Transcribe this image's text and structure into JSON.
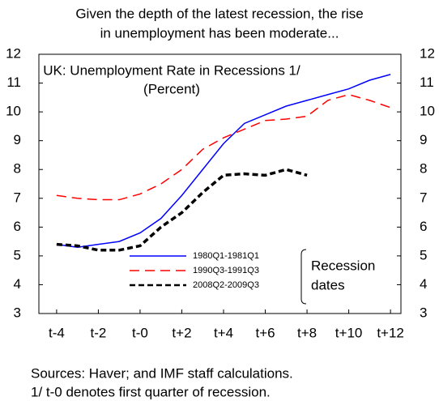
{
  "chart_data": {
    "type": "line",
    "title": [
      "Given the depth of the latest recession, the rise",
      "in unemployment has been moderate..."
    ],
    "subtitle": [
      "UK: Unemployment Rate in Recessions 1/",
      "(Percent)"
    ],
    "legend_title": [
      "Recession",
      "dates"
    ],
    "notes": [
      "Sources: Haver; and IMF staff calculations.",
      "1/ t-0 denotes first quarter of recession."
    ],
    "x": [
      -4,
      -3,
      -2,
      -1,
      0,
      1,
      2,
      3,
      4,
      5,
      6,
      7,
      8,
      9,
      10,
      11,
      12
    ],
    "series": [
      {
        "name": "1980Q1-1981Q1",
        "color": "#0000ff",
        "dash": "none",
        "width": 1.5,
        "values": [
          5.4,
          5.3,
          5.4,
          5.5,
          5.8,
          6.3,
          7.1,
          8.0,
          8.9,
          9.6,
          9.9,
          10.2,
          10.4,
          10.6,
          10.8,
          11.1,
          11.3
        ]
      },
      {
        "name": "1990Q3-1991Q3",
        "color": "#ff0000",
        "dash": "12 7",
        "width": 1.5,
        "values": [
          7.1,
          7.0,
          6.95,
          6.95,
          7.15,
          7.5,
          8.0,
          8.7,
          9.1,
          9.4,
          9.7,
          9.75,
          9.85,
          10.4,
          10.6,
          10.4,
          10.15
        ]
      },
      {
        "name": "2008Q2-2009Q3",
        "color": "#000000",
        "dash": "7 4",
        "width": 3.5,
        "values": [
          5.4,
          5.35,
          5.2,
          5.2,
          5.35,
          6.0,
          6.5,
          7.2,
          7.8,
          7.85,
          7.8,
          8.0,
          7.8,
          null,
          null,
          null,
          null
        ]
      }
    ],
    "xlim": [
      -4.85,
      12.5
    ],
    "xticks": [
      {
        "value": -4,
        "label": "t-4"
      },
      {
        "value": -2,
        "label": "t-2"
      },
      {
        "value": 0,
        "label": "t-0"
      },
      {
        "value": 2,
        "label": "t+2"
      },
      {
        "value": 4,
        "label": "t+4"
      },
      {
        "value": 6,
        "label": "t+6"
      },
      {
        "value": 8,
        "label": "t+8"
      },
      {
        "value": 10,
        "label": "t+10"
      },
      {
        "value": 12,
        "label": "t+12"
      }
    ],
    "ylim": [
      3,
      12
    ],
    "yticks": [
      3,
      4,
      5,
      6,
      7,
      8,
      9,
      10,
      11,
      12
    ],
    "y2lim": [
      3,
      12
    ],
    "y2ticks": [
      3,
      4,
      5,
      6,
      7,
      8,
      9,
      10,
      11,
      12
    ]
  }
}
